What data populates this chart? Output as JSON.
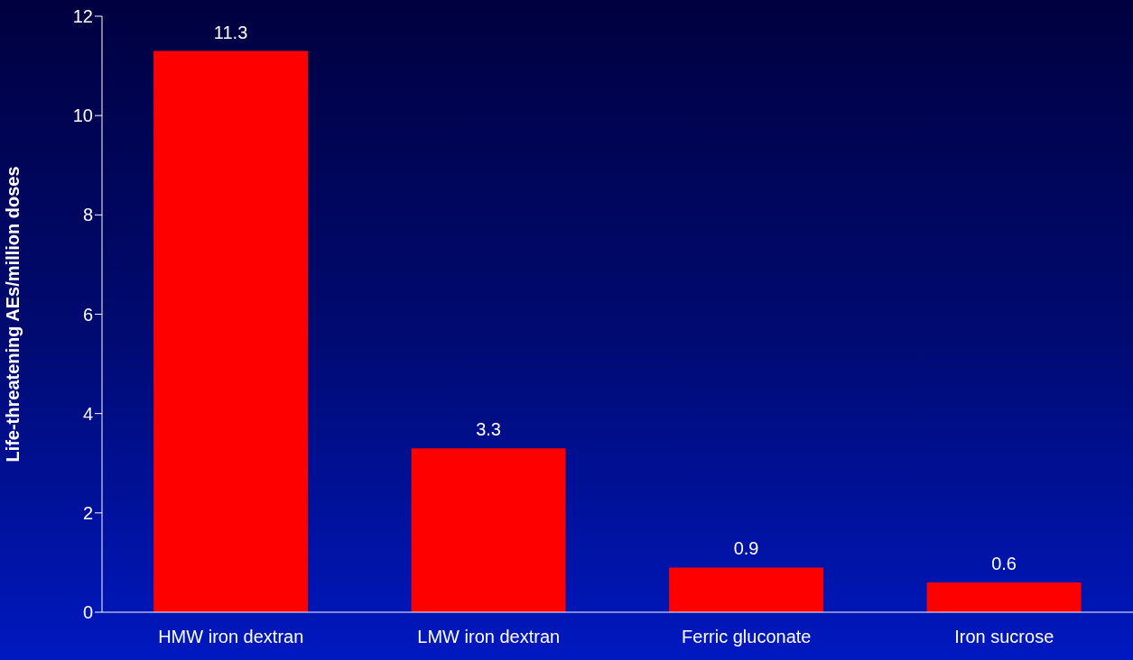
{
  "chart_data": {
    "type": "bar",
    "ylabel": "Life-threatening AEs/million doses",
    "categories": [
      "HMW iron dextran",
      "LMW iron dextran",
      "Ferric gluconate",
      "Iron sucrose"
    ],
    "values": [
      11.3,
      3.3,
      0.9,
      0.6
    ],
    "color": "#ff0000",
    "ylim": [
      0,
      12
    ],
    "yticks": [
      0,
      2,
      4,
      6,
      8,
      10,
      12
    ],
    "grid": false,
    "legend": false,
    "data_labels": true
  }
}
